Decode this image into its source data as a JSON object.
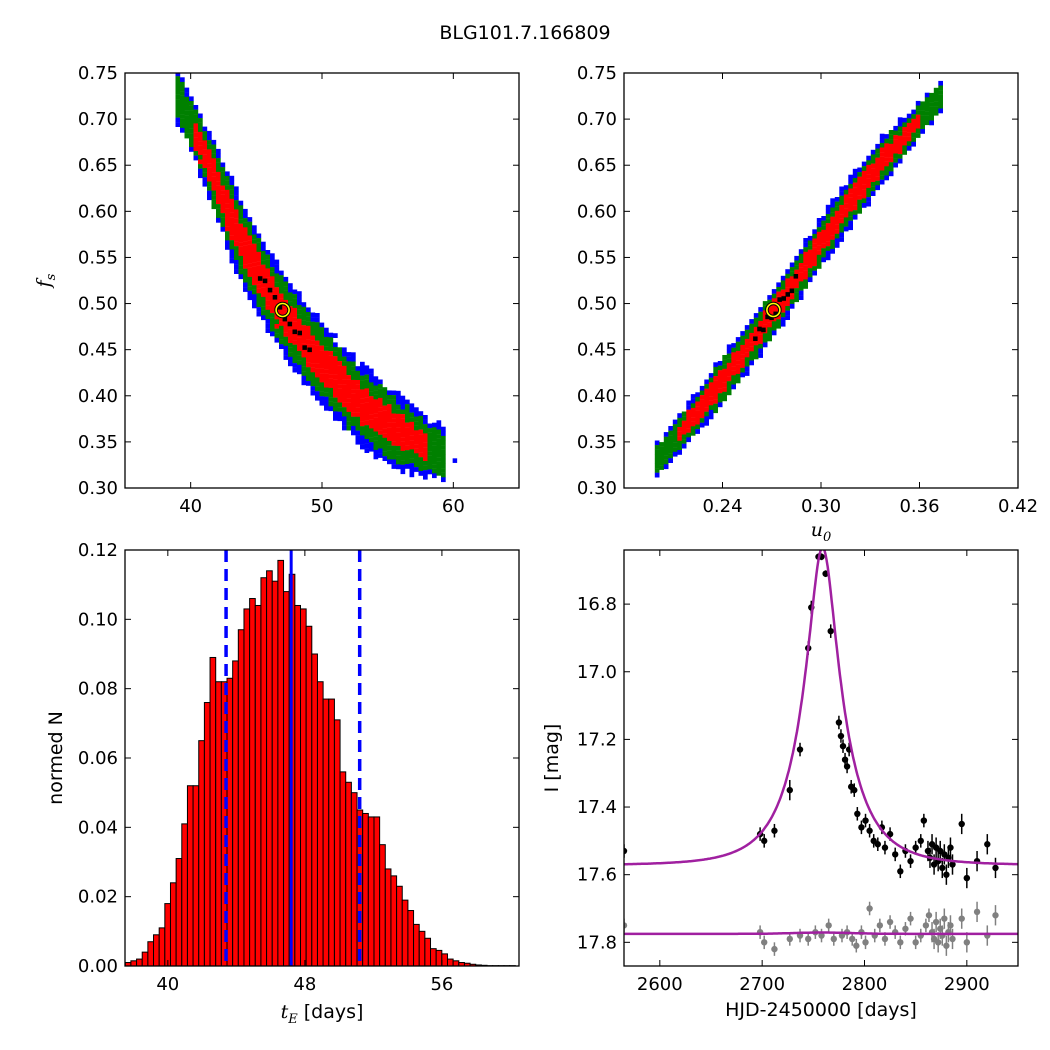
{
  "figure": {
    "title": "BLG101.7.166809"
  },
  "colors": {
    "sigma1": "#ff0000",
    "sigma2": "#008000",
    "sigma3": "#0000ff",
    "best_cells": "#000000",
    "best_marker": "#ffff00",
    "hist_fill": "#ff0000",
    "median_line": "#0000ff",
    "quantile_lines": "#0000ff",
    "model": "#a020a0",
    "data_main": "#000000",
    "data_secondary": "#808080"
  },
  "chart_data": [
    {
      "type": "heatmap",
      "title": "",
      "xlabel": "",
      "ylabel": "f_s",
      "xlim": [
        35,
        65
      ],
      "ylim": [
        0.3,
        0.75
      ],
      "xticks": [
        "40",
        "50",
        "60"
      ],
      "yticks": [
        "0.30",
        "0.35",
        "0.40",
        "0.45",
        "0.50",
        "0.55",
        "0.60",
        "0.65",
        "0.70",
        "0.75"
      ],
      "levels": [
        "1-sigma",
        "2-sigma",
        "3-sigma"
      ],
      "ridge": [
        [
          39.0,
          0.725
        ],
        [
          41.0,
          0.66
        ],
        [
          43.5,
          0.575
        ],
        [
          46.0,
          0.51
        ],
        [
          48.5,
          0.46
        ],
        [
          51.0,
          0.42
        ],
        [
          53.0,
          0.39
        ],
        [
          56.0,
          0.36
        ],
        [
          59.0,
          0.34
        ]
      ],
      "best_fit": {
        "x": 47.0,
        "y": 0.493
      },
      "extra_point": {
        "x": 60.1,
        "y": 0.33
      }
    },
    {
      "type": "heatmap",
      "title": "",
      "xlabel": "u_0",
      "ylabel": "",
      "xlim": [
        0.18,
        0.42
      ],
      "ylim": [
        0.3,
        0.75
      ],
      "xticks": [
        "0.24",
        "0.30",
        "0.36",
        "0.42"
      ],
      "yticks": [
        "0.30",
        "0.35",
        "0.40",
        "0.45",
        "0.50",
        "0.55",
        "0.60",
        "0.65",
        "0.70",
        "0.75"
      ],
      "levels": [
        "1-sigma",
        "2-sigma",
        "3-sigma"
      ],
      "ridge": [
        [
          0.2,
          0.335
        ],
        [
          0.235,
          0.41
        ],
        [
          0.27,
          0.493
        ],
        [
          0.305,
          0.585
        ],
        [
          0.335,
          0.655
        ],
        [
          0.37,
          0.725
        ]
      ],
      "best_fit": {
        "x": 0.271,
        "y": 0.493
      }
    },
    {
      "type": "bar",
      "title": "",
      "xlabel": "t_E [days]",
      "ylabel": "normed N",
      "xlim": [
        37.5,
        60.5
      ],
      "ylim": [
        0,
        0.12
      ],
      "xticks": [
        "40",
        "48",
        "56"
      ],
      "yticks": [
        "0.00",
        "0.02",
        "0.04",
        "0.06",
        "0.08",
        "0.10",
        "0.12"
      ],
      "bin_width": 0.33,
      "x": [
        37.68,
        38.01,
        38.34,
        38.67,
        39.0,
        39.33,
        39.66,
        39.99,
        40.32,
        40.65,
        40.98,
        41.31,
        41.64,
        41.97,
        42.3,
        42.63,
        42.96,
        43.29,
        43.62,
        43.95,
        44.28,
        44.61,
        44.94,
        45.27,
        45.6,
        45.93,
        46.26,
        46.59,
        46.92,
        47.25,
        47.58,
        47.91,
        48.24,
        48.57,
        48.9,
        49.23,
        49.56,
        49.89,
        50.22,
        50.55,
        50.88,
        51.21,
        51.54,
        51.87,
        52.2,
        52.53,
        52.86,
        53.19,
        53.52,
        53.85,
        54.18,
        54.51,
        54.84,
        55.17,
        55.5,
        55.83,
        56.16,
        56.49,
        56.82,
        57.15,
        57.48,
        57.81,
        58.14,
        58.47,
        58.8,
        59.13,
        59.46,
        59.79,
        60.12
      ],
      "values": [
        0.001,
        0.0015,
        0.002,
        0.004,
        0.007,
        0.009,
        0.011,
        0.018,
        0.024,
        0.031,
        0.041,
        0.052,
        0.052,
        0.065,
        0.076,
        0.089,
        0.082,
        0.082,
        0.083,
        0.088,
        0.097,
        0.103,
        0.106,
        0.104,
        0.112,
        0.114,
        0.111,
        0.117,
        0.108,
        0.113,
        0.104,
        0.103,
        0.098,
        0.09,
        0.082,
        0.077,
        0.077,
        0.071,
        0.056,
        0.053,
        0.05,
        0.045,
        0.044,
        0.043,
        0.043,
        0.035,
        0.028,
        0.026,
        0.023,
        0.019,
        0.016,
        0.012,
        0.01,
        0.008,
        0.005,
        0.0045,
        0.0035,
        0.002,
        0.0015,
        0.001,
        0.0008,
        0.0005,
        0.0003,
        0.0002,
        0.0001,
        0.0001,
        0.0001,
        0.0001,
        0.0001
      ],
      "median": 47.2,
      "quantiles": [
        43.4,
        51.2
      ]
    },
    {
      "type": "scatter",
      "title": "",
      "xlabel": "HJD-2450000 [days]",
      "ylabel": "I [mag]",
      "xlim": [
        2565,
        2950
      ],
      "ylim": [
        17.87,
        16.64
      ],
      "y_inverted": true,
      "xticks": [
        "2600",
        "2700",
        "2800",
        "2900"
      ],
      "yticks": [
        "16.8",
        "17.0",
        "17.2",
        "17.4",
        "17.6",
        "17.8"
      ],
      "model": {
        "t0": 2759,
        "tE": 47,
        "u0": 0.271,
        "fs": 0.493,
        "baseline": 17.572
      },
      "series": [
        {
          "x": [
            2565,
            2698,
            2702,
            2712,
            2727,
            2737,
            2745,
            2748,
            2755,
            2758,
            2762,
            2767,
            2775,
            2777,
            2779,
            2781,
            2783,
            2785,
            2787,
            2790,
            2793,
            2797,
            2801,
            2805,
            2809,
            2813,
            2817,
            2820,
            2825,
            2830,
            2835,
            2840,
            2845,
            2850,
            2855,
            2858,
            2862,
            2864,
            2866,
            2868,
            2870,
            2872,
            2874,
            2876,
            2878,
            2880,
            2882,
            2884,
            2886,
            2895,
            2900,
            2910,
            2920,
            2928
          ],
          "y": [
            17.53,
            17.48,
            17.5,
            17.47,
            17.35,
            17.23,
            16.93,
            16.81,
            16.66,
            16.66,
            16.71,
            16.88,
            17.15,
            17.19,
            17.22,
            17.26,
            17.28,
            17.23,
            17.34,
            17.35,
            17.42,
            17.46,
            17.44,
            17.47,
            17.5,
            17.51,
            17.46,
            17.52,
            17.48,
            17.54,
            17.59,
            17.53,
            17.56,
            17.52,
            17.5,
            17.44,
            17.53,
            17.55,
            17.51,
            17.57,
            17.52,
            17.56,
            17.53,
            17.58,
            17.54,
            17.6,
            17.55,
            17.52,
            17.57,
            17.45,
            17.61,
            17.56,
            17.51,
            17.58
          ],
          "yerr": [
            0.02,
            0.02,
            0.02,
            0.02,
            0.03,
            0.02,
            0.02,
            0.02,
            0.01,
            0.01,
            0.01,
            0.02,
            0.02,
            0.02,
            0.02,
            0.02,
            0.02,
            0.02,
            0.02,
            0.02,
            0.02,
            0.02,
            0.02,
            0.02,
            0.02,
            0.02,
            0.02,
            0.02,
            0.02,
            0.02,
            0.02,
            0.02,
            0.02,
            0.02,
            0.02,
            0.02,
            0.03,
            0.03,
            0.03,
            0.03,
            0.03,
            0.03,
            0.03,
            0.03,
            0.03,
            0.03,
            0.03,
            0.03,
            0.03,
            0.03,
            0.03,
            0.03,
            0.03,
            0.03
          ]
        },
        {
          "x": [
            2565,
            2698,
            2702,
            2712,
            2727,
            2737,
            2745,
            2752,
            2758,
            2765,
            2770,
            2778,
            2783,
            2788,
            2792,
            2797,
            2801,
            2805,
            2810,
            2815,
            2820,
            2825,
            2830,
            2835,
            2840,
            2845,
            2850,
            2855,
            2860,
            2863,
            2866,
            2868,
            2870,
            2872,
            2874,
            2876,
            2878,
            2880,
            2882,
            2884,
            2886,
            2895,
            2900,
            2910,
            2920,
            2928
          ],
          "y": [
            17.75,
            17.77,
            17.8,
            17.82,
            17.79,
            17.78,
            17.79,
            17.77,
            17.78,
            17.75,
            17.79,
            17.78,
            17.77,
            17.79,
            17.81,
            17.77,
            17.8,
            17.7,
            17.78,
            17.75,
            17.79,
            17.74,
            17.77,
            17.8,
            17.76,
            17.73,
            17.8,
            17.78,
            17.75,
            17.72,
            17.77,
            17.79,
            17.74,
            17.8,
            17.76,
            17.78,
            17.73,
            17.81,
            17.77,
            17.75,
            17.79,
            17.73,
            17.8,
            17.71,
            17.78,
            17.72
          ],
          "yerr": [
            0.02,
            0.02,
            0.02,
            0.02,
            0.02,
            0.02,
            0.02,
            0.02,
            0.02,
            0.02,
            0.02,
            0.02,
            0.02,
            0.02,
            0.02,
            0.02,
            0.02,
            0.02,
            0.02,
            0.02,
            0.02,
            0.02,
            0.02,
            0.02,
            0.02,
            0.02,
            0.02,
            0.02,
            0.02,
            0.02,
            0.03,
            0.03,
            0.03,
            0.03,
            0.03,
            0.03,
            0.03,
            0.03,
            0.03,
            0.03,
            0.03,
            0.03,
            0.03,
            0.03,
            0.03,
            0.03
          ]
        }
      ],
      "baseline_secondary": 17.775
    }
  ]
}
